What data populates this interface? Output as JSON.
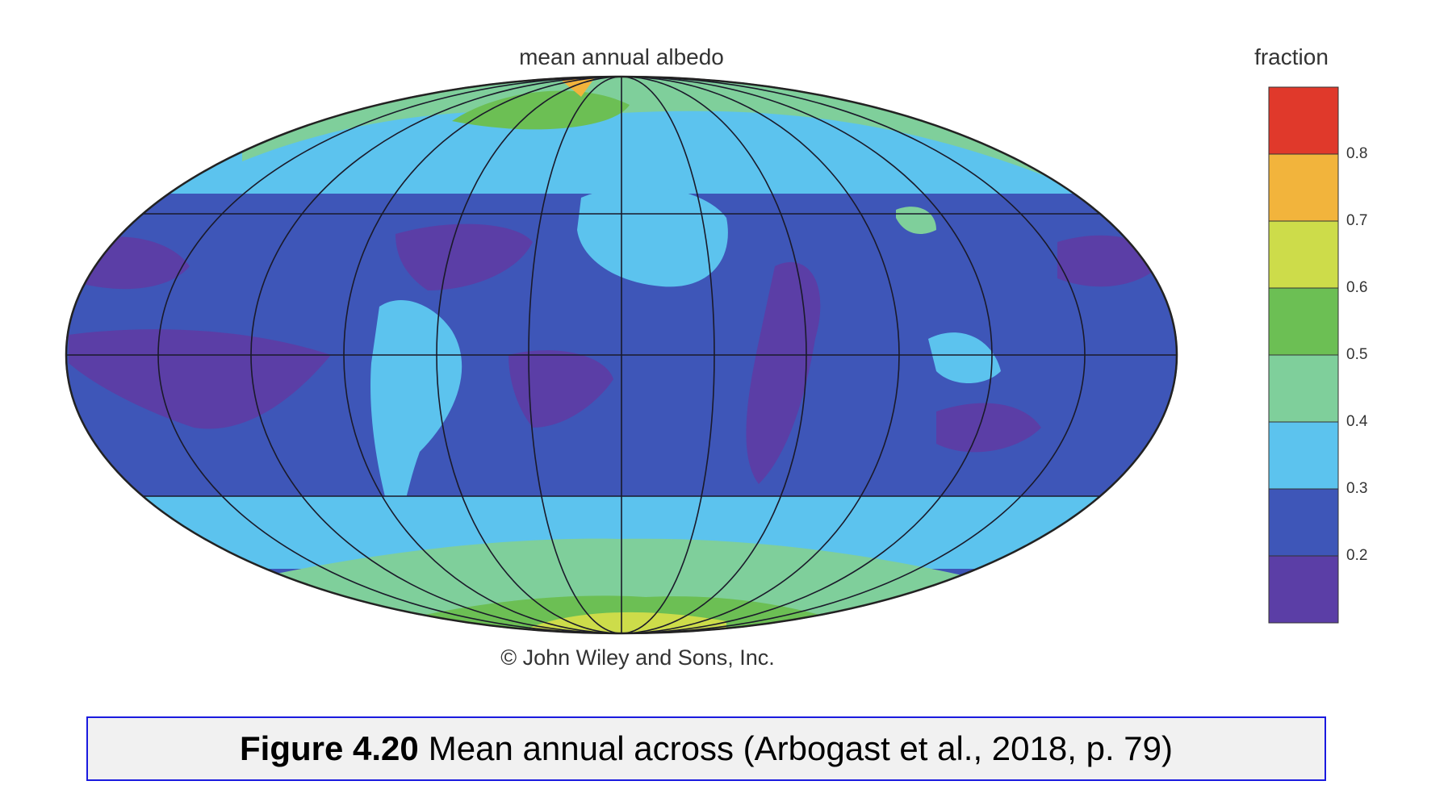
{
  "map": {
    "title": "mean annual albedo",
    "copyright": "© John Wiley and Sons, Inc."
  },
  "legend": {
    "title": "fraction",
    "ticks": [
      "0.8",
      "0.7",
      "0.6",
      "0.5",
      "0.4",
      "0.3",
      "0.2"
    ],
    "colors": [
      "#e0392b",
      "#f2b43c",
      "#cddc4a",
      "#6cbf54",
      "#7fcf9b",
      "#5cc3ee",
      "#3e56b8",
      "#5b3ea6"
    ]
  },
  "caption": {
    "label": "Figure 4.20",
    "text": "Mean annual across (Arbogast et al., 2018, p. 79)"
  }
}
